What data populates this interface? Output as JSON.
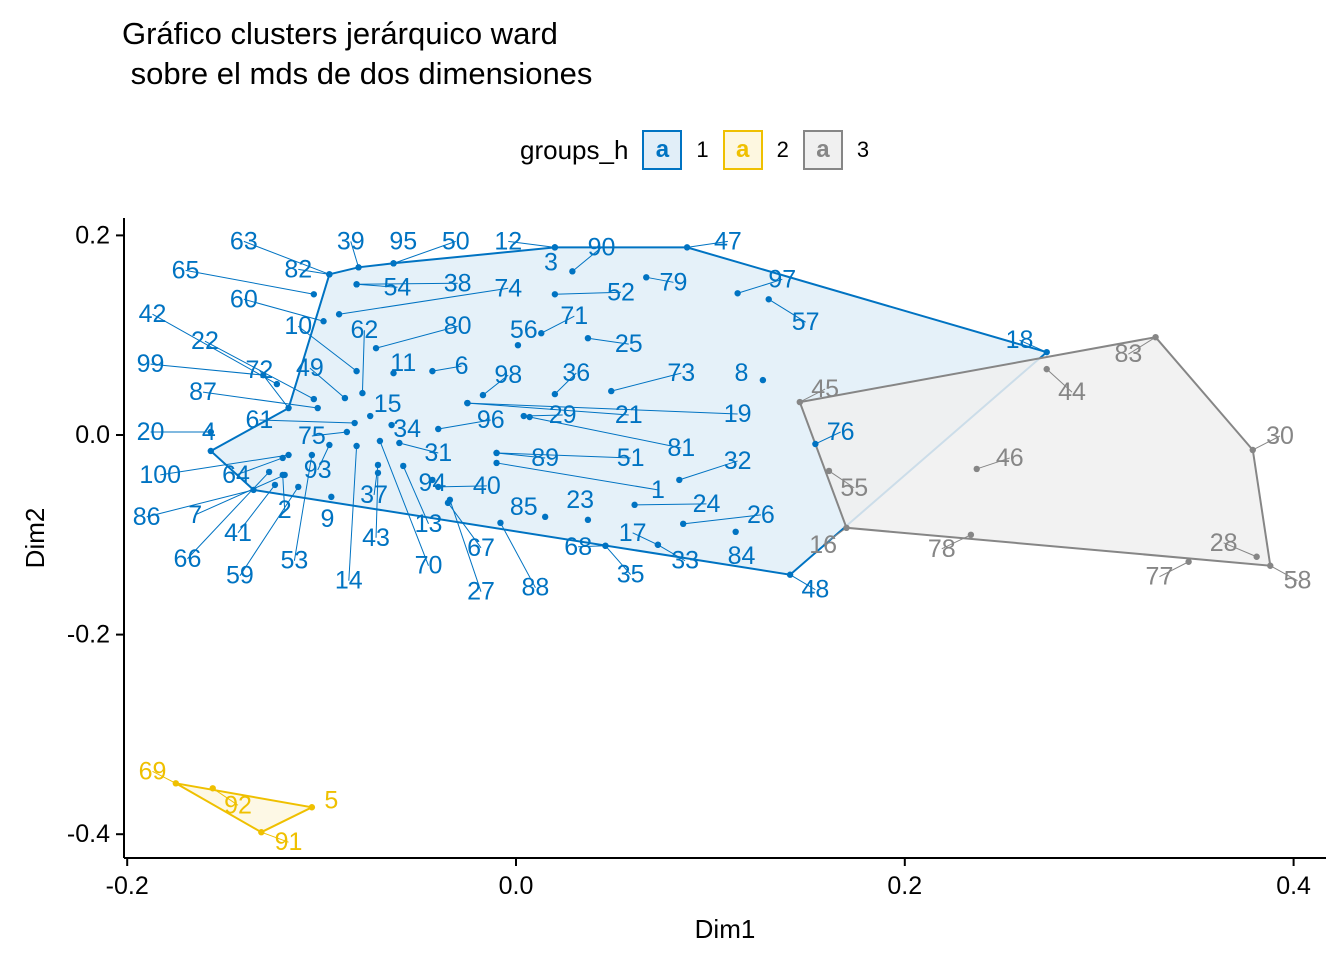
{
  "chart_data": {
    "type": "scatter",
    "title": [
      "Gráfico clusters jerárquico ward",
      " sobre el mds de dos dimensiones"
    ],
    "xlabel": "Dim1",
    "ylabel": "Dim2",
    "xlim": [
      -0.2,
      0.42
    ],
    "ylim": [
      -0.42,
      0.21
    ],
    "xticks": [
      -0.2,
      0.0,
      0.2,
      0.4
    ],
    "xtick_labels": [
      "-0.2",
      "0.0",
      "0.2",
      "0.4"
    ],
    "yticks": [
      -0.4,
      -0.2,
      0.0,
      0.2
    ],
    "ytick_labels": [
      "-0.4",
      "-0.2",
      "0.0",
      "0.2"
    ],
    "grid": false,
    "legend": {
      "title": "groups_h",
      "position": "top",
      "items": [
        {
          "label": "1",
          "key_glyph": "a",
          "color": "#0073C2",
          "fill": "#E1EEF8"
        },
        {
          "label": "2",
          "key_glyph": "a",
          "color": "#EFC000",
          "fill": "#FDF7E0"
        },
        {
          "label": "3",
          "key_glyph": "a",
          "color": "#868686",
          "fill": "#F0F0F0"
        }
      ]
    },
    "series": [
      {
        "name": "1",
        "color": "#0073C2",
        "fill": "#E1EEF8",
        "hull": [
          "4",
          "72",
          "82",
          "39",
          "95",
          "12",
          "47",
          "18",
          "48",
          "86"
        ],
        "points": [
          {
            "id": "63",
            "x": -0.096,
            "y": 0.161,
            "lx": -0.14,
            "ly": 0.194
          },
          {
            "id": "82",
            "x": -0.096,
            "y": 0.161,
            "lx": -0.112,
            "ly": 0.166
          },
          {
            "id": "39",
            "x": -0.081,
            "y": 0.168,
            "lx": -0.085,
            "ly": 0.194
          },
          {
            "id": "95",
            "x": -0.063,
            "y": 0.172,
            "lx": -0.058,
            "ly": 0.194
          },
          {
            "id": "50",
            "x": -0.063,
            "y": 0.172,
            "lx": -0.031,
            "ly": 0.194
          },
          {
            "id": "12",
            "x": 0.02,
            "y": 0.188,
            "lx": -0.004,
            "ly": 0.194
          },
          {
            "id": "3",
            "x": 0.02,
            "y": 0.188,
            "lx": 0.018,
            "ly": 0.173
          },
          {
            "id": "90",
            "x": 0.029,
            "y": 0.164,
            "lx": 0.044,
            "ly": 0.188
          },
          {
            "id": "47",
            "x": 0.088,
            "y": 0.188,
            "lx": 0.109,
            "ly": 0.194
          },
          {
            "id": "97",
            "x": 0.114,
            "y": 0.142,
            "lx": 0.137,
            "ly": 0.156
          },
          {
            "id": "57",
            "x": 0.13,
            "y": 0.136,
            "lx": 0.149,
            "ly": 0.113
          },
          {
            "id": "18",
            "x": 0.273,
            "y": 0.083,
            "lx": 0.259,
            "ly": 0.095
          },
          {
            "id": "79",
            "x": 0.067,
            "y": 0.158,
            "lx": 0.081,
            "ly": 0.153
          },
          {
            "id": "65",
            "x": -0.104,
            "y": 0.141,
            "lx": -0.17,
            "ly": 0.165
          },
          {
            "id": "54",
            "x": -0.082,
            "y": 0.151,
            "lx": -0.061,
            "ly": 0.148
          },
          {
            "id": "38",
            "x": -0.082,
            "y": 0.151,
            "lx": -0.03,
            "ly": 0.152
          },
          {
            "id": "74",
            "x": -0.091,
            "y": 0.121,
            "lx": -0.004,
            "ly": 0.147
          },
          {
            "id": "52",
            "x": 0.02,
            "y": 0.141,
            "lx": 0.054,
            "ly": 0.143
          },
          {
            "id": "60",
            "x": -0.099,
            "y": 0.114,
            "lx": -0.14,
            "ly": 0.136
          },
          {
            "id": "80",
            "x": -0.072,
            "y": 0.087,
            "lx": -0.03,
            "ly": 0.109
          },
          {
            "id": "71",
            "x": 0.013,
            "y": 0.102,
            "lx": 0.03,
            "ly": 0.119
          },
          {
            "id": "10",
            "x": -0.082,
            "y": 0.064,
            "lx": -0.112,
            "ly": 0.109
          },
          {
            "id": "62",
            "x": -0.079,
            "y": 0.042,
            "lx": -0.078,
            "ly": 0.105
          },
          {
            "id": "56",
            "x": 0.001,
            "y": 0.09,
            "lx": 0.004,
            "ly": 0.105
          },
          {
            "id": "25",
            "x": 0.037,
            "y": 0.097,
            "lx": 0.058,
            "ly": 0.091
          },
          {
            "id": "42",
            "x": -0.123,
            "y": 0.051,
            "lx": -0.187,
            "ly": 0.121
          },
          {
            "id": "22",
            "x": -0.104,
            "y": 0.036,
            "lx": -0.16,
            "ly": 0.094
          },
          {
            "id": "11",
            "x": -0.063,
            "y": 0.062,
            "lx": -0.058,
            "ly": 0.072
          },
          {
            "id": "6",
            "x": -0.043,
            "y": 0.064,
            "lx": -0.028,
            "ly": 0.069
          },
          {
            "id": "98",
            "x": -0.017,
            "y": 0.04,
            "lx": -0.004,
            "ly": 0.06
          },
          {
            "id": "36",
            "x": 0.02,
            "y": 0.041,
            "lx": 0.031,
            "ly": 0.062
          },
          {
            "id": "73",
            "x": 0.049,
            "y": 0.044,
            "lx": 0.085,
            "ly": 0.062
          },
          {
            "id": "8",
            "x": 0.127,
            "y": 0.055,
            "lx": 0.116,
            "ly": 0.062
          },
          {
            "id": "99",
            "x": -0.13,
            "y": 0.06,
            "lx": -0.188,
            "ly": 0.071
          },
          {
            "id": "49",
            "x": -0.088,
            "y": 0.037,
            "lx": -0.106,
            "ly": 0.067
          },
          {
            "id": "72",
            "x": -0.117,
            "y": 0.027,
            "lx": -0.132,
            "ly": 0.065
          },
          {
            "id": "87",
            "x": -0.102,
            "y": 0.027,
            "lx": -0.161,
            "ly": 0.043
          },
          {
            "id": "15",
            "x": -0.075,
            "y": 0.019,
            "lx": -0.066,
            "ly": 0.031
          },
          {
            "id": "96",
            "x": -0.04,
            "y": 0.006,
            "lx": -0.013,
            "ly": 0.015
          },
          {
            "id": "29",
            "x": 0.004,
            "y": 0.019,
            "lx": 0.024,
            "ly": 0.02
          },
          {
            "id": "21",
            "x": -0.025,
            "y": 0.032,
            "lx": 0.058,
            "ly": 0.02
          },
          {
            "id": "19",
            "x": -0.025,
            "y": 0.032,
            "lx": 0.114,
            "ly": 0.021
          },
          {
            "id": "81",
            "x": 0.007,
            "y": 0.018,
            "lx": 0.085,
            "ly": -0.013
          },
          {
            "id": "61",
            "x": -0.083,
            "y": 0.012,
            "lx": -0.132,
            "ly": 0.015
          },
          {
            "id": "34",
            "x": -0.064,
            "y": 0.01,
            "lx": -0.056,
            "ly": 0.006
          },
          {
            "id": "75",
            "x": -0.087,
            "y": 0.003,
            "lx": -0.105,
            "ly": -0.001
          },
          {
            "id": "20",
            "x": -0.157,
            "y": 0.003,
            "lx": -0.188,
            "ly": 0.003
          },
          {
            "id": "4",
            "x": -0.157,
            "y": -0.016,
            "lx": -0.158,
            "ly": 0.003
          },
          {
            "id": "31",
            "x": -0.06,
            "y": -0.008,
            "lx": -0.04,
            "ly": -0.018
          },
          {
            "id": "89",
            "x": -0.01,
            "y": -0.018,
            "lx": 0.015,
            "ly": -0.023
          },
          {
            "id": "51",
            "x": -0.01,
            "y": -0.018,
            "lx": 0.059,
            "ly": -0.023
          },
          {
            "id": "32",
            "x": 0.084,
            "y": -0.045,
            "lx": 0.114,
            "ly": -0.026
          },
          {
            "id": "100",
            "x": -0.117,
            "y": -0.02,
            "lx": -0.183,
            "ly": -0.04
          },
          {
            "id": "93",
            "x": -0.096,
            "y": -0.01,
            "lx": -0.102,
            "ly": -0.035
          },
          {
            "id": "64",
            "x": -0.12,
            "y": -0.023,
            "lx": -0.144,
            "ly": -0.04
          },
          {
            "id": "94",
            "x": -0.043,
            "y": -0.045,
            "lx": -0.043,
            "ly": -0.048
          },
          {
            "id": "40",
            "x": -0.04,
            "y": -0.052,
            "lx": -0.015,
            "ly": -0.051
          },
          {
            "id": "1",
            "x": -0.01,
            "y": -0.028,
            "lx": 0.073,
            "ly": -0.055
          },
          {
            "id": "37",
            "x": -0.071,
            "y": -0.03,
            "lx": -0.073,
            "ly": -0.06
          },
          {
            "id": "85",
            "x": 0.015,
            "y": -0.082,
            "lx": 0.004,
            "ly": -0.072
          },
          {
            "id": "23",
            "x": 0.037,
            "y": -0.085,
            "lx": 0.033,
            "ly": -0.065
          },
          {
            "id": "24",
            "x": 0.061,
            "y": -0.07,
            "lx": 0.098,
            "ly": -0.069
          },
          {
            "id": "26",
            "x": 0.086,
            "y": -0.089,
            "lx": 0.126,
            "ly": -0.08
          },
          {
            "id": "86",
            "x": -0.135,
            "y": -0.055,
            "lx": -0.19,
            "ly": -0.082
          },
          {
            "id": "7",
            "x": -0.119,
            "y": -0.04,
            "lx": -0.165,
            "ly": -0.08
          },
          {
            "id": "2",
            "x": -0.12,
            "y": -0.04,
            "lx": -0.119,
            "ly": -0.075
          },
          {
            "id": "9",
            "x": -0.095,
            "y": -0.062,
            "lx": -0.097,
            "ly": -0.084
          },
          {
            "id": "13",
            "x": -0.058,
            "y": -0.031,
            "lx": -0.045,
            "ly": -0.089
          },
          {
            "id": "41",
            "x": -0.124,
            "y": -0.05,
            "lx": -0.143,
            "ly": -0.098
          },
          {
            "id": "17",
            "x": 0.073,
            "y": -0.11,
            "lx": 0.06,
            "ly": -0.098
          },
          {
            "id": "43",
            "x": -0.071,
            "y": -0.038,
            "lx": -0.072,
            "ly": -0.103
          },
          {
            "id": "67",
            "x": -0.035,
            "y": -0.068,
            "lx": -0.018,
            "ly": -0.113
          },
          {
            "id": "68",
            "x": 0.046,
            "y": -0.111,
            "lx": 0.032,
            "ly": -0.112
          },
          {
            "id": "84",
            "x": 0.113,
            "y": -0.097,
            "lx": 0.116,
            "ly": -0.121
          },
          {
            "id": "66",
            "x": -0.127,
            "y": -0.037,
            "lx": -0.169,
            "ly": -0.124
          },
          {
            "id": "53",
            "x": -0.105,
            "y": -0.02,
            "lx": -0.114,
            "ly": -0.126
          },
          {
            "id": "33",
            "x": 0.073,
            "y": -0.11,
            "lx": 0.087,
            "ly": -0.126
          },
          {
            "id": "70",
            "x": -0.07,
            "y": -0.006,
            "lx": -0.045,
            "ly": -0.131
          },
          {
            "id": "35",
            "x": 0.046,
            "y": -0.111,
            "lx": 0.059,
            "ly": -0.14
          },
          {
            "id": "59",
            "x": -0.112,
            "y": -0.052,
            "lx": -0.142,
            "ly": -0.141
          },
          {
            "id": "14",
            "x": -0.082,
            "y": -0.011,
            "lx": -0.086,
            "ly": -0.146
          },
          {
            "id": "88",
            "x": -0.008,
            "y": -0.088,
            "lx": 0.01,
            "ly": -0.153
          },
          {
            "id": "27",
            "x": -0.034,
            "y": -0.065,
            "lx": -0.018,
            "ly": -0.157
          },
          {
            "id": "48",
            "x": 0.141,
            "y": -0.14,
            "lx": 0.154,
            "ly": -0.155
          },
          {
            "id": "76",
            "x": 0.154,
            "y": -0.009,
            "lx": 0.167,
            "ly": 0.003
          }
        ]
      },
      {
        "name": "2",
        "color": "#EFC000",
        "fill": "#FDF7E0",
        "hull": [
          "69",
          "5",
          "91"
        ],
        "points": [
          {
            "id": "69",
            "x": -0.175,
            "y": -0.349,
            "lx": -0.187,
            "ly": -0.337
          },
          {
            "id": "92",
            "x": -0.156,
            "y": -0.354,
            "lx": -0.143,
            "ly": -0.371
          },
          {
            "id": "5",
            "x": -0.105,
            "y": -0.373,
            "lx": -0.095,
            "ly": -0.366
          },
          {
            "id": "91",
            "x": -0.131,
            "y": -0.398,
            "lx": -0.117,
            "ly": -0.408
          }
        ]
      },
      {
        "name": "3",
        "color": "#868686",
        "fill": "#F0F0F0",
        "hull": [
          "45",
          "18",
          "83",
          "30",
          "58",
          "16"
        ],
        "points": [
          {
            "id": "45",
            "x": 0.146,
            "y": 0.033,
            "lx": 0.159,
            "ly": 0.046
          },
          {
            "id": "83",
            "x": 0.329,
            "y": 0.098,
            "lx": 0.315,
            "ly": 0.081
          },
          {
            "id": "44",
            "x": 0.273,
            "y": 0.066,
            "lx": 0.286,
            "ly": 0.043
          },
          {
            "id": "30",
            "x": 0.379,
            "y": -0.015,
            "lx": 0.393,
            "ly": -0.001
          },
          {
            "id": "46",
            "x": 0.237,
            "y": -0.034,
            "lx": 0.254,
            "ly": -0.023
          },
          {
            "id": "55",
            "x": 0.161,
            "y": -0.036,
            "lx": 0.174,
            "ly": -0.053
          },
          {
            "id": "16",
            "x": 0.17,
            "y": -0.093,
            "lx": 0.158,
            "ly": -0.11
          },
          {
            "id": "78",
            "x": 0.234,
            "y": -0.1,
            "lx": 0.219,
            "ly": -0.114
          },
          {
            "id": "28",
            "x": 0.381,
            "y": -0.122,
            "lx": 0.364,
            "ly": -0.108
          },
          {
            "id": "77",
            "x": 0.346,
            "y": -0.127,
            "lx": 0.331,
            "ly": -0.142
          },
          {
            "id": "58",
            "x": 0.388,
            "y": -0.131,
            "lx": 0.402,
            "ly": -0.146
          }
        ]
      }
    ]
  }
}
